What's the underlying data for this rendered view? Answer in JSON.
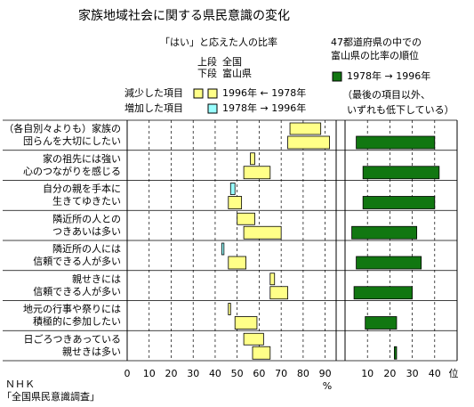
{
  "title": "家族地域社会に関する県民意識の変化",
  "chart_data": {
    "type": "range-bar",
    "left_header": "「はい」と応えた人の比率",
    "row_legend": [
      {
        "position": "上段",
        "name": "全国"
      },
      {
        "position": "下段",
        "name": "富山県"
      }
    ],
    "change_legend": [
      {
        "label": "減少した項目",
        "color": "#ffff88",
        "years": "1996年 ← 1978年"
      },
      {
        "label": "増加した項目",
        "color": "#99ffff",
        "years": "1978年 → 1996年"
      }
    ],
    "right_header": [
      "47都道府県の中での",
      "富山県の比率の順位"
    ],
    "right_legend": {
      "color": "#117711",
      "label": "1978年 → 1996年"
    },
    "right_note": [
      "（最後の項目以外、",
      "いずれも低下している）"
    ],
    "categories": [
      [
        "（各自別々よりも）家族の",
        "団らんを大切にしたい"
      ],
      [
        "家の祖先には強い",
        "心のつながりを感じる"
      ],
      [
        "自分の親を手本に",
        "生きてゆきたい"
      ],
      [
        "隣近所の人との",
        "つきあいは多い"
      ],
      [
        "隣近所の人には",
        "信頼できる人が多い"
      ],
      [
        "親せきには",
        "信頼できる人が多い"
      ],
      [
        "地元の行事や祭りには",
        "積極的に参加したい"
      ],
      [
        "日ごろつきあっている",
        "親せきは多い"
      ]
    ],
    "series": [
      {
        "values_1978": [
          88,
          58,
          47,
          58,
          43,
          67,
          47,
          62
        ],
        "values_1996": [
          74,
          56,
          49,
          50,
          44,
          65,
          46,
          53
        ]
      },
      {
        "values_1978": [
          92,
          65,
          52,
          70,
          54,
          73,
          59,
          65
        ],
        "values_1996": [
          73,
          53,
          46,
          53,
          46,
          65,
          49,
          57
        ]
      },
      {
        "values_1978": [
          5,
          8,
          8,
          3,
          5,
          4,
          9,
          23
        ],
        "values_1996": [
          40,
          42,
          40,
          32,
          34,
          30,
          23,
          22
        ]
      }
    ],
    "ratio_xlim": [
      0,
      95
    ],
    "ratio_xticks": [
      0,
      10,
      20,
      30,
      40,
      50,
      60,
      70,
      80,
      90
    ],
    "ratio_unit": "%",
    "rank_xlim": [
      0,
      50
    ],
    "rank_xticks": [
      10,
      20,
      30,
      40
    ],
    "rank_unit": "位",
    "source": [
      "ＮＨＫ",
      "「全国県民意識調査」"
    ]
  }
}
